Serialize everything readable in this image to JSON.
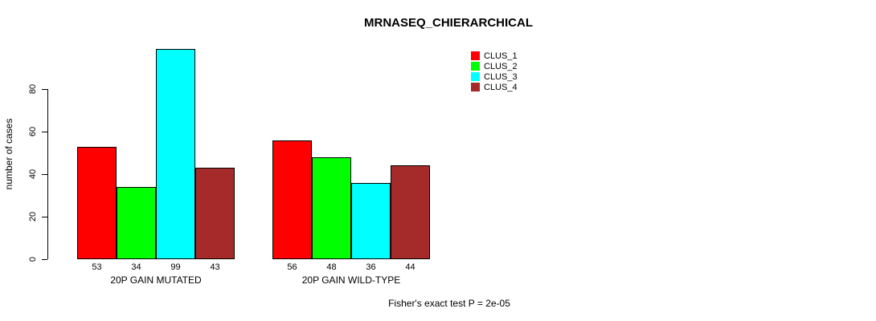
{
  "chart_data": {
    "type": "bar",
    "title": "MRNASEQ_CHIERARCHICAL",
    "ylabel": "number of cases",
    "xlabel": "",
    "yticks": [
      0,
      20,
      40,
      60,
      80
    ],
    "ylim": [
      0,
      99
    ],
    "grid": false,
    "legend_position": "top-right",
    "categories": [
      "20P GAIN MUTATED",
      "20P GAIN WILD-TYPE"
    ],
    "groups": [
      {
        "label": "20P GAIN MUTATED",
        "values": [
          53,
          34,
          99,
          43
        ]
      },
      {
        "label": "20P GAIN WILD-TYPE",
        "values": [
          56,
          48,
          36,
          44
        ]
      }
    ],
    "series": [
      {
        "name": "CLUS_1",
        "color": "#ff0000"
      },
      {
        "name": "CLUS_2",
        "color": "#00ff00"
      },
      {
        "name": "CLUS_3",
        "color": "#00ffff"
      },
      {
        "name": "CLUS_4",
        "color": "#a52a2a"
      }
    ],
    "annotation": "Fisher's exact test P = 2e-05"
  }
}
